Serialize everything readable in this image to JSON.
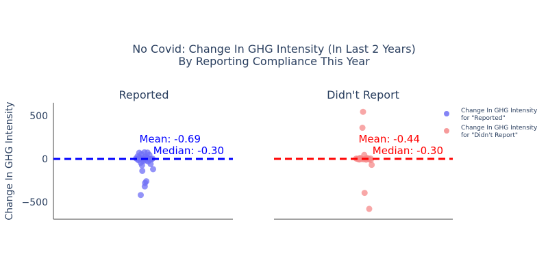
{
  "chart_data": {
    "type": "scatter",
    "title_line1": "No Covid: Change In GHG Intensity (In Last 2 Years)",
    "title_line2": "By Reporting Compliance This Year",
    "ylabel": "Change In GHG Intensity",
    "yticks": [
      500,
      0,
      -500
    ],
    "ytick_labels": [
      "500",
      "0",
      "−500"
    ],
    "ylim": [
      -700,
      650
    ],
    "grid": false,
    "legend_position": "top-right",
    "panels": [
      {
        "name": "Reported",
        "color": "#0000ff",
        "marker_color": "#6f6ff5",
        "mean_label": "Mean: -0.69",
        "median_label": "Median: -0.30",
        "mean_value": -0.69,
        "median_value": -0.3,
        "points": [
          [
            -0.15,
            70
          ],
          [
            0.02,
            75
          ],
          [
            0.12,
            72
          ],
          [
            -0.08,
            55
          ],
          [
            0.18,
            45
          ],
          [
            -0.2,
            30
          ],
          [
            0.05,
            25
          ],
          [
            0.1,
            15
          ],
          [
            -0.05,
            10
          ],
          [
            0.15,
            5
          ],
          [
            -0.12,
            0
          ],
          [
            0.0,
            -5
          ],
          [
            0.2,
            -10
          ],
          [
            -0.18,
            -15
          ],
          [
            0.08,
            -20
          ],
          [
            -0.02,
            -25
          ],
          [
            0.14,
            -30
          ],
          [
            -0.1,
            -45
          ],
          [
            0.22,
            -60
          ],
          [
            -0.06,
            -75
          ],
          [
            0.3,
            -120
          ],
          [
            -0.05,
            -140
          ],
          [
            0.08,
            -260
          ],
          [
            0.04,
            -280
          ],
          [
            0.03,
            -320
          ],
          [
            -0.1,
            -420
          ],
          [
            -0.22,
            0
          ],
          [
            -0.25,
            5
          ],
          [
            0.25,
            -5
          ],
          [
            0.28,
            2
          ],
          [
            -0.16,
            -2
          ],
          [
            0.06,
            3
          ],
          [
            -0.04,
            -3
          ],
          [
            0.11,
            8
          ],
          [
            -0.14,
            12
          ],
          [
            0.19,
            -8
          ]
        ],
        "legend_label_line1": "Change In GHG Intensity",
        "legend_label_line2": "for \"Reported\""
      },
      {
        "name": "Didn't Report",
        "color": "#ff0000",
        "marker_color": "#f58a8a",
        "mean_label": "Mean: -0.44",
        "median_label": "Median: -0.30",
        "mean_value": -0.44,
        "median_value": -0.3,
        "points": [
          [
            0.0,
            545
          ],
          [
            -0.02,
            360
          ],
          [
            0.04,
            45
          ],
          [
            -0.1,
            10
          ],
          [
            0.12,
            5
          ],
          [
            -0.18,
            0
          ],
          [
            0.2,
            -5
          ],
          [
            0.08,
            2
          ],
          [
            -0.05,
            -3
          ],
          [
            0.15,
            8
          ],
          [
            0.25,
            -15
          ],
          [
            0.28,
            -70
          ],
          [
            -0.15,
            -5
          ],
          [
            0.1,
            -10
          ],
          [
            0.05,
            -395
          ],
          [
            0.2,
            -580
          ],
          [
            -0.22,
            3
          ],
          [
            0.18,
            -2
          ],
          [
            -0.08,
            6
          ],
          [
            0.02,
            -6
          ],
          [
            0.24,
            4
          ],
          [
            -0.12,
            -8
          ]
        ],
        "legend_label_line1": "Change In GHG Intensity",
        "legend_label_line2": "for \"Didn't Report\""
      }
    ]
  }
}
